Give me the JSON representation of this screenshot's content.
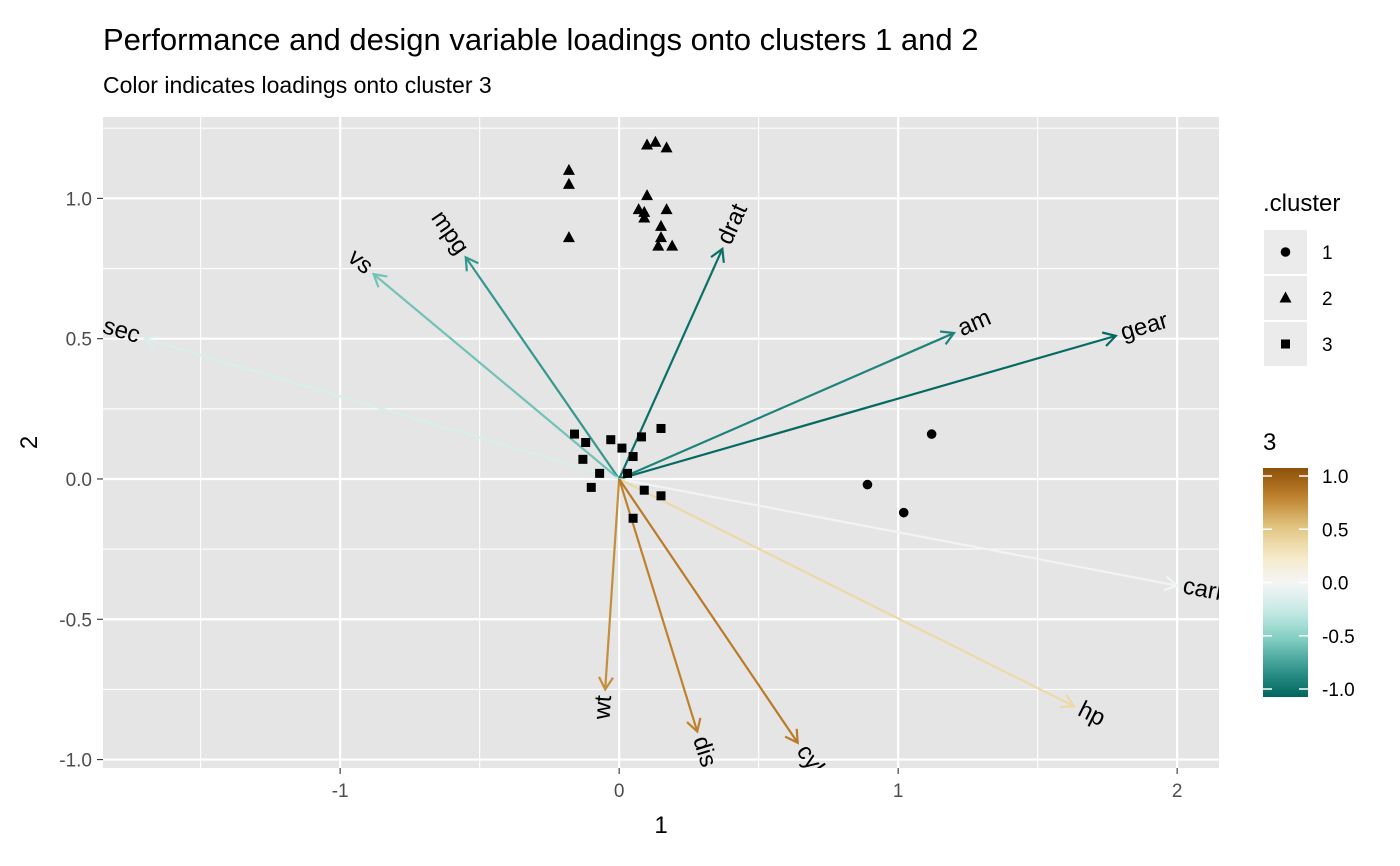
{
  "chart_data": {
    "type": "scatter",
    "title": "Performance and design variable loadings onto clusters 1 and 2",
    "subtitle": "Color indicates loadings onto cluster 3",
    "xlabel": "1",
    "ylabel": "2",
    "xlim": [
      -1.85,
      2.15
    ],
    "ylim": [
      -1.03,
      1.29
    ],
    "x_ticks": [
      -1,
      0,
      1,
      2
    ],
    "y_ticks": [
      -1.0,
      -0.5,
      0.0,
      0.5,
      1.0
    ],
    "x_tick_labels": [
      "-1",
      "0",
      "1",
      "2"
    ],
    "y_tick_labels": [
      "-1.0",
      "-0.5",
      "0.0",
      "0.5",
      "1.0"
    ],
    "grid": true,
    "arrows": [
      {
        "label": "mpg",
        "x": -0.55,
        "y": 0.79,
        "color_value": -0.75
      },
      {
        "label": "vs",
        "x": -0.88,
        "y": 0.73,
        "color_value": -0.55
      },
      {
        "label": "sec",
        "x": -1.7,
        "y": 0.5,
        "color_value": -0.15
      },
      {
        "label": "drat",
        "x": 0.37,
        "y": 0.82,
        "color_value": -0.95
      },
      {
        "label": "am",
        "x": 1.2,
        "y": 0.52,
        "color_value": -0.85
      },
      {
        "label": "gear",
        "x": 1.78,
        "y": 0.51,
        "color_value": -0.98
      },
      {
        "label": "carb",
        "x": 2.0,
        "y": -0.38,
        "color_value": -0.02
      },
      {
        "label": "hp",
        "x": 1.63,
        "y": -0.81,
        "color_value": 0.35
      },
      {
        "label": "wt",
        "x": -0.05,
        "y": -0.75,
        "color_value": 0.7
      },
      {
        "label": "dis",
        "x": 0.28,
        "y": -0.9,
        "color_value": 0.75
      },
      {
        "label": "cyl",
        "x": 0.64,
        "y": -0.94,
        "color_value": 0.78
      }
    ],
    "series": [
      {
        "name": "1",
        "shape": "circle",
        "points": [
          [
            0.89,
            -0.02
          ],
          [
            1.02,
            -0.12
          ],
          [
            1.12,
            0.16
          ]
        ]
      },
      {
        "name": "2",
        "shape": "triangle",
        "points": [
          [
            -0.18,
            1.1
          ],
          [
            -0.18,
            1.05
          ],
          [
            -0.18,
            0.86
          ],
          [
            0.1,
            1.19
          ],
          [
            0.13,
            1.2
          ],
          [
            0.17,
            1.18
          ],
          [
            0.1,
            1.01
          ],
          [
            0.07,
            0.96
          ],
          [
            0.09,
            0.95
          ],
          [
            0.09,
            0.93
          ],
          [
            0.17,
            0.96
          ],
          [
            0.15,
            0.9
          ],
          [
            0.15,
            0.86
          ],
          [
            0.14,
            0.83
          ],
          [
            0.19,
            0.83
          ]
        ]
      },
      {
        "name": "3",
        "shape": "square",
        "points": [
          [
            -0.16,
            0.16
          ],
          [
            -0.12,
            0.13
          ],
          [
            -0.03,
            0.14
          ],
          [
            0.01,
            0.11
          ],
          [
            0.08,
            0.15
          ],
          [
            0.15,
            0.18
          ],
          [
            -0.13,
            0.07
          ],
          [
            0.05,
            0.08
          ],
          [
            -0.07,
            0.02
          ],
          [
            0.03,
            0.02
          ],
          [
            -0.1,
            -0.03
          ],
          [
            0.09,
            -0.04
          ],
          [
            0.15,
            -0.06
          ],
          [
            0.05,
            -0.14
          ]
        ]
      }
    ],
    "legend_shape": {
      "title": ".cluster",
      "entries": [
        "1",
        "2",
        "3"
      ],
      "position": "right"
    },
    "legend_color": {
      "title": "3",
      "ticks": [
        "1.0",
        "0.5",
        "0.0",
        "-0.5",
        "-1.0"
      ],
      "range": [
        -1.0,
        1.0
      ],
      "low_color": "#01665e",
      "mid_color": "#f5f5f5",
      "high_color": "#8c510a",
      "position": "right"
    },
    "panel_background": "#e5e5e5",
    "grid_color": "#ffffff"
  }
}
